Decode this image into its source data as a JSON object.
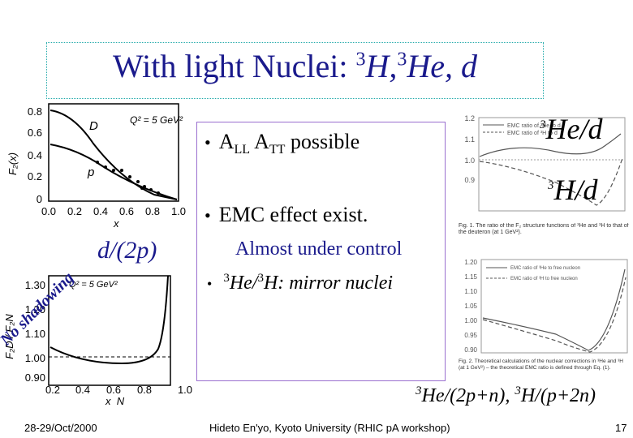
{
  "title": {
    "text": "With light Nuclei: ",
    "formula_sup1": "3",
    "formula_h": "H,",
    "formula_sup2": "3",
    "formula_he": "He, d"
  },
  "bullets": [
    {
      "pre": "A",
      "sub1": "LL",
      "mid": " A",
      "sub2": "TT",
      "post": " possible"
    },
    {
      "text": "EMC effect exist."
    }
  ],
  "note": "Almost under control",
  "mirror": {
    "sup1": "3",
    "he": "He/",
    "sup2": "3",
    "rest": "H: mirror nuclei"
  },
  "ratio_label": "d/(2p)",
  "he3_label": {
    "sup": "3",
    "text": "He/d"
  },
  "h3_label": {
    "sup": "3",
    "text": "H/d"
  },
  "bottom_eq": {
    "sup1": "3",
    "part1": "He/(2p+n), ",
    "sup2": "3",
    "part2": "H/(p+2n)"
  },
  "no_shadowing": "No shadowing",
  "footer": {
    "date": "28-29/Oct/2000",
    "center": "Hideto En'yo, Kyoto University (RHIC pA workshop)",
    "page": "17"
  },
  "plot1": {
    "y_ticks": [
      "0.8",
      "0.6",
      "0.4",
      "0.2",
      "0"
    ],
    "x_ticks": [
      "0.0",
      "0.2",
      "0.4",
      "0.6",
      "0.8",
      "1.0"
    ],
    "ylabel": "F₂(x)",
    "xlabel": "x",
    "q2": "Q² = 5 GeV²",
    "curve_D": "D",
    "curve_p": "p"
  },
  "plot2": {
    "y_ticks": [
      "1.30",
      "1.20",
      "1.10",
      "1.00",
      "0.90"
    ],
    "x_ticks": [
      "0.2",
      "0.4",
      "0.6",
      "0.8",
      "1.0"
    ],
    "ylabel": "F₂D / F₂N",
    "xlabel": "x_N",
    "q2": "Q² = 5 GeV²"
  },
  "plot3": {
    "y_ticks": [
      "1.2",
      "1.1",
      "1.0",
      "0.9"
    ],
    "legend": [
      "EMC ratio of ³He to d",
      "EMC ratio of ³H to d"
    ],
    "caption": "Fig. 1. The ratio of the F₂ structure functions of ³He and ³H to that of the deuteron (at 1 GeV²)."
  },
  "plot4": {
    "y_ticks": [
      "1.20",
      "1.15",
      "1.10",
      "1.05",
      "1.00",
      "0.95",
      "0.90"
    ],
    "legend": [
      "EMC ratio of ³He to free nucleon",
      "EMC ratio of ³H to free nucleon"
    ],
    "caption": "Fig. 2. Theoretical calculations of the nuclear corrections in ³He and ³H (at 1 GeV²) – the theoretical EMC ratio is defined through Eq. (1)."
  }
}
